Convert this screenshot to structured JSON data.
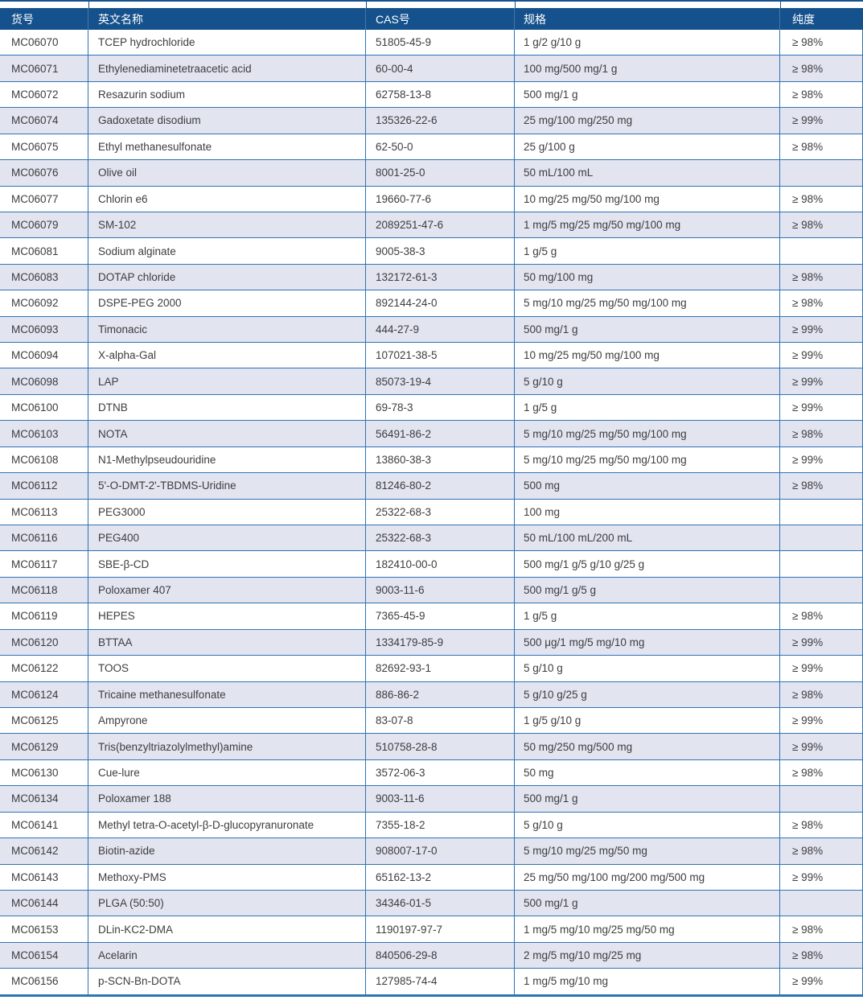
{
  "colors": {
    "header_bg": "#15518C",
    "row_alt_bg": "#E2E4F0",
    "border_blue": "#2E74B5",
    "header_text": "#FFFFFF",
    "body_text": "#3D3D3D"
  },
  "table": {
    "columns": [
      {
        "key": "id",
        "label": "货号"
      },
      {
        "key": "name",
        "label": "英文名称"
      },
      {
        "key": "cas",
        "label": "CAS号"
      },
      {
        "key": "spec",
        "label": "规格"
      },
      {
        "key": "purity",
        "label": "纯度"
      }
    ],
    "rows": [
      {
        "id": "MC06070",
        "name": "TCEP hydrochloride",
        "cas": "51805-45-9",
        "spec": "1 g/2 g/10 g",
        "purity": "≥ 98%"
      },
      {
        "id": "MC06071",
        "name": "Ethylenediaminetetraacetic acid",
        "cas": "60-00-4",
        "spec": "100 mg/500 mg/1 g",
        "purity": "≥ 98%"
      },
      {
        "id": "MC06072",
        "name": "Resazurin sodium",
        "cas": "62758-13-8",
        "spec": "500 mg/1 g",
        "purity": "≥ 98%"
      },
      {
        "id": "MC06074",
        "name": "Gadoxetate disodium",
        "cas": "135326-22-6",
        "spec": "25 mg/100 mg/250 mg",
        "purity": "≥ 99%"
      },
      {
        "id": "MC06075",
        "name": "Ethyl methanesulfonate",
        "cas": "62-50-0",
        "spec": "25 g/100 g",
        "purity": "≥ 98%"
      },
      {
        "id": "MC06076",
        "name": "Olive oil",
        "cas": "8001-25-0",
        "spec": "50 mL/100 mL",
        "purity": ""
      },
      {
        "id": "MC06077",
        "name": "Chlorin e6",
        "cas": "19660-77-6",
        "spec": "10 mg/25 mg/50 mg/100 mg",
        "purity": "≥ 98%"
      },
      {
        "id": "MC06079",
        "name": "SM-102",
        "cas": "2089251-47-6",
        "spec": "1 mg/5 mg/25 mg/50 mg/100 mg",
        "purity": "≥ 98%"
      },
      {
        "id": "MC06081",
        "name": "Sodium alginate",
        "cas": "9005-38-3",
        "spec": "1 g/5 g",
        "purity": ""
      },
      {
        "id": "MC06083",
        "name": "DOTAP chloride",
        "cas": "132172-61-3",
        "spec": "50 mg/100 mg",
        "purity": "≥ 98%"
      },
      {
        "id": "MC06092",
        "name": "DSPE-PEG 2000",
        "cas": "892144-24-0",
        "spec": "5 mg/10 mg/25 mg/50 mg/100 mg",
        "purity": "≥ 98%"
      },
      {
        "id": "MC06093",
        "name": "Timonacic",
        "cas": "444-27-9",
        "spec": "500 mg/1 g",
        "purity": "≥ 99%"
      },
      {
        "id": "MC06094",
        "name": "X-alpha-Gal",
        "cas": "107021-38-5",
        "spec": "10 mg/25 mg/50 mg/100 mg",
        "purity": "≥ 99%"
      },
      {
        "id": "MC06098",
        "name": "LAP",
        "cas": "85073-19-4",
        "spec": "5 g/10 g",
        "purity": "≥ 99%"
      },
      {
        "id": "MC06100",
        "name": "DTNB",
        "cas": "69-78-3",
        "spec": "1 g/5 g",
        "purity": "≥ 99%"
      },
      {
        "id": "MC06103",
        "name": "NOTA",
        "cas": "56491-86-2",
        "spec": "5 mg/10 mg/25 mg/50 mg/100 mg",
        "purity": "≥ 98%"
      },
      {
        "id": "MC06108",
        "name": "N1-Methylpseudouridine",
        "cas": "13860-38-3",
        "spec": "5 mg/10 mg/25 mg/50 mg/100 mg",
        "purity": "≥ 99%"
      },
      {
        "id": "MC06112",
        "name": "5'-O-DMT-2'-TBDMS-Uridine",
        "cas": "81246-80-2",
        "spec": "500 mg",
        "purity": "≥ 98%"
      },
      {
        "id": "MC06113",
        "name": "PEG3000",
        "cas": "25322-68-3",
        "spec": "100 mg",
        "purity": ""
      },
      {
        "id": "MC06116",
        "name": "PEG400",
        "cas": "25322-68-3",
        "spec": "50 mL/100 mL/200 mL",
        "purity": ""
      },
      {
        "id": "MC06117",
        "name": "SBE-β-CD",
        "cas": "182410-00-0",
        "spec": "500 mg/1 g/5 g/10 g/25 g",
        "purity": ""
      },
      {
        "id": "MC06118",
        "name": "Poloxamer 407",
        "cas": "9003-11-6",
        "spec": "500 mg/1 g/5 g",
        "purity": ""
      },
      {
        "id": "MC06119",
        "name": "HEPES",
        "cas": "7365-45-9",
        "spec": "1 g/5 g",
        "purity": "≥ 98%"
      },
      {
        "id": "MC06120",
        "name": "BTTAA",
        "cas": "1334179-85-9",
        "spec": "500 μg/1 mg/5 mg/10 mg",
        "purity": "≥ 99%"
      },
      {
        "id": "MC06122",
        "name": "TOOS",
        "cas": "82692-93-1",
        "spec": "5 g/10 g",
        "purity": "≥ 99%"
      },
      {
        "id": "MC06124",
        "name": "Tricaine methanesulfonate",
        "cas": "886-86-2",
        "spec": "5 g/10 g/25 g",
        "purity": "≥ 98%"
      },
      {
        "id": "MC06125",
        "name": "Ampyrone",
        "cas": "83-07-8",
        "spec": "1 g/5 g/10 g",
        "purity": "≥ 99%"
      },
      {
        "id": "MC06129",
        "name": "Tris(benzyltriazolylmethyl)amine",
        "cas": "510758-28-8",
        "spec": "50 mg/250 mg/500 mg",
        "purity": "≥ 99%"
      },
      {
        "id": "MC06130",
        "name": "Cue-lure",
        "cas": "3572-06-3",
        "spec": "50 mg",
        "purity": "≥ 98%"
      },
      {
        "id": "MC06134",
        "name": "Poloxamer 188",
        "cas": "9003-11-6",
        "spec": "500 mg/1 g",
        "purity": ""
      },
      {
        "id": "MC06141",
        "name": "Methyl tetra-O-acetyl-β-D-glucopyranuronate",
        "cas": "7355-18-2",
        "spec": "5 g/10 g",
        "purity": "≥ 98%"
      },
      {
        "id": "MC06142",
        "name": "Biotin-azide",
        "cas": "908007-17-0",
        "spec": "5 mg/10 mg/25 mg/50 mg",
        "purity": "≥ 98%"
      },
      {
        "id": "MC06143",
        "name": "Methoxy-PMS",
        "cas": "65162-13-2",
        "spec": "25 mg/50 mg/100 mg/200 mg/500 mg",
        "purity": "≥ 99%"
      },
      {
        "id": "MC06144",
        "name": "PLGA (50:50)",
        "cas": "34346-01-5",
        "spec": "500 mg/1 g",
        "purity": ""
      },
      {
        "id": "MC06153",
        "name": "DLin-KC2-DMA",
        "cas": "1190197-97-7",
        "spec": "1 mg/5 mg/10 mg/25 mg/50 mg",
        "purity": "≥ 98%"
      },
      {
        "id": "MC06154",
        "name": "Acelarin",
        "cas": "840506-29-8",
        "spec": "2 mg/5 mg/10 mg/25 mg",
        "purity": "≥ 98%"
      },
      {
        "id": "MC06156",
        "name": "p-SCN-Bn-DOTA",
        "cas": "127985-74-4",
        "spec": "1 mg/5 mg/10 mg",
        "purity": "≥ 99%"
      }
    ]
  }
}
